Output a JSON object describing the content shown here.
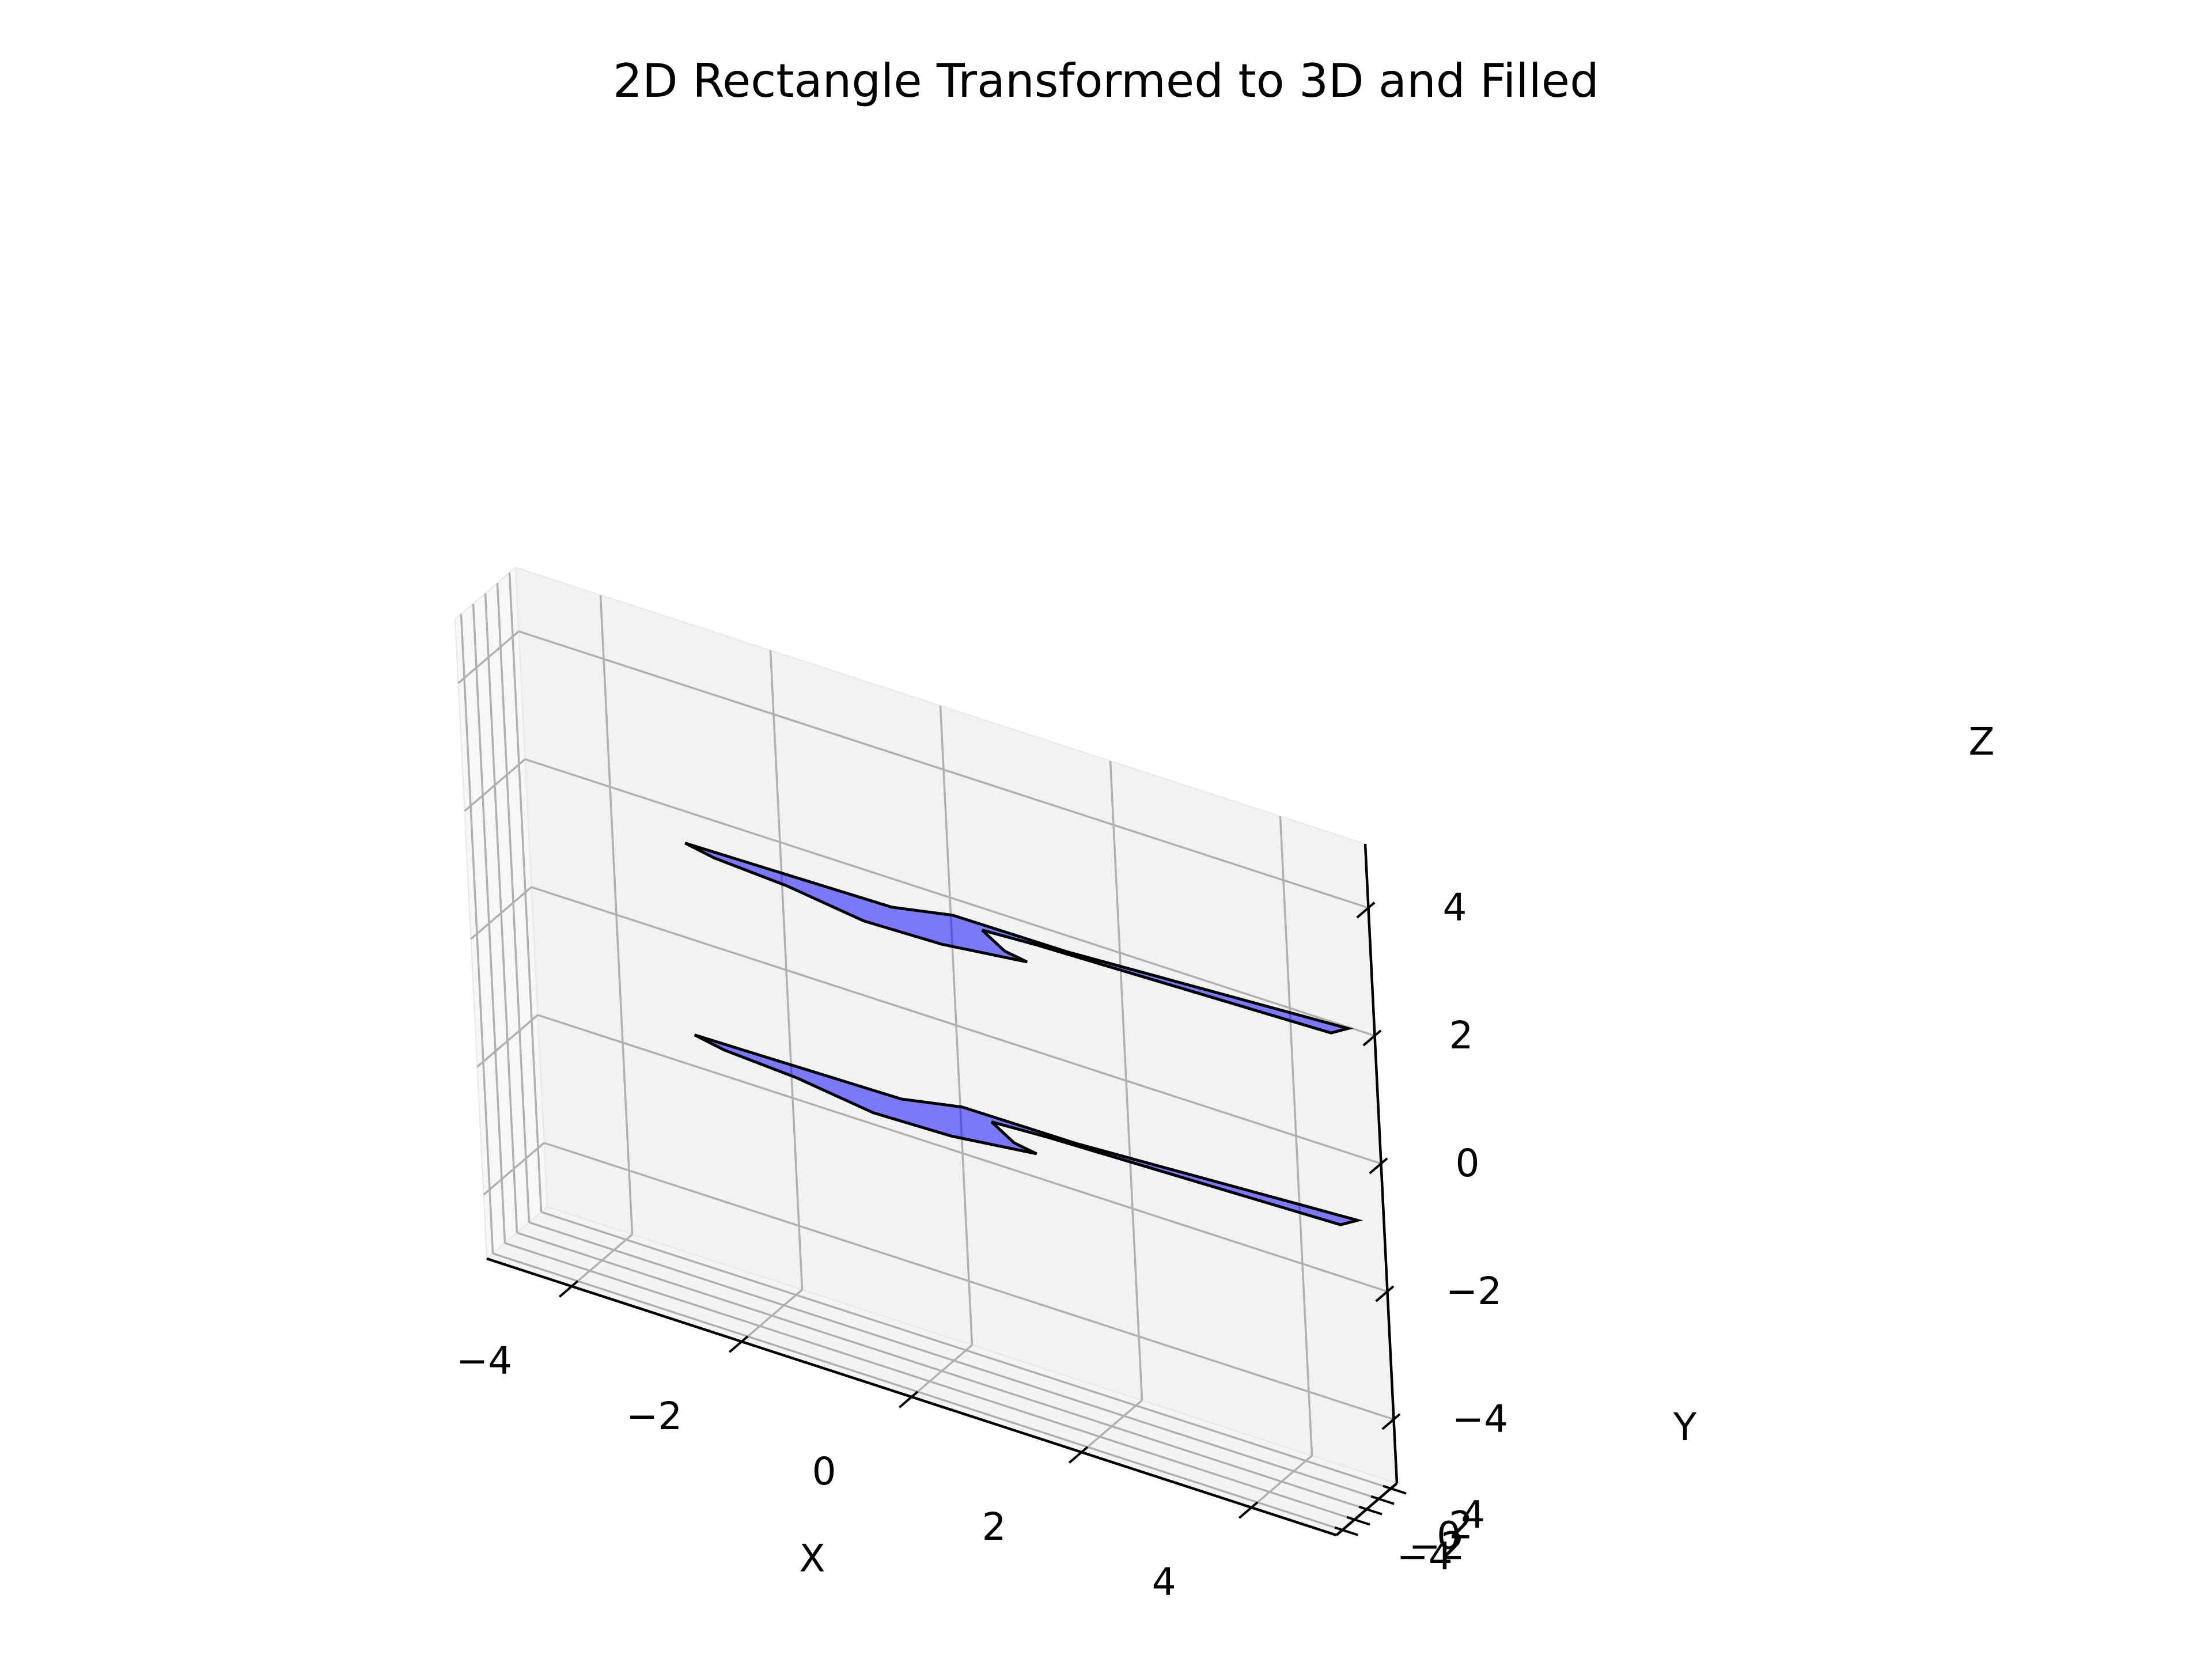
{
  "chart_data": {
    "type": "polygon3d",
    "title": "2D Rectangle Transformed to 3D and Filled",
    "xlabel": "X",
    "ylabel": "Y",
    "zlabel": "Z",
    "xlim": [
      -5,
      5
    ],
    "ylim": [
      -5,
      5
    ],
    "zlim": [
      -5,
      5
    ],
    "xticks": [
      -4,
      -2,
      0,
      2,
      4
    ],
    "yticks": [
      -4,
      -2,
      0,
      2,
      4
    ],
    "zticks": [
      -4,
      -2,
      0,
      2,
      4
    ],
    "grid": true,
    "fill_color": "#0000ff",
    "fill_alpha": 0.5,
    "edge_color": "#000000",
    "pane_colors": {
      "back": "#f2f2f2",
      "left": "#f7f7f7",
      "floor": "#f4f4f4"
    },
    "shapes": [
      {
        "z": 2,
        "vertices": [
          [
            -2.4,
            -0.2
          ],
          [
            -2.8,
            0.55
          ],
          [
            -0.4,
            1.0
          ],
          [
            0.2,
            2.65
          ],
          [
            1.55,
            2.75
          ],
          [
            4.7,
            4.8
          ],
          [
            4.6,
            3.4
          ],
          [
            1.2,
            2.3
          ],
          [
            0.6,
            1.9
          ],
          [
            1.0,
            0.0
          ],
          [
            1.3,
            -0.5
          ],
          [
            0.4,
            -1.9
          ],
          [
            -0.5,
            -2.2
          ],
          [
            -1.5,
            -0.8
          ]
        ]
      },
      {
        "z": -1,
        "vertices": [
          [
            -2.4,
            -0.2
          ],
          [
            -2.8,
            0.55
          ],
          [
            -0.4,
            1.0
          ],
          [
            0.2,
            2.65
          ],
          [
            1.55,
            2.75
          ],
          [
            4.7,
            4.8
          ],
          [
            4.6,
            3.4
          ],
          [
            1.2,
            2.3
          ],
          [
            0.6,
            1.9
          ],
          [
            1.0,
            0.0
          ],
          [
            1.3,
            -0.5
          ],
          [
            0.4,
            -1.9
          ],
          [
            -0.5,
            -2.2
          ],
          [
            -1.5,
            -0.8
          ]
        ]
      }
    ]
  }
}
